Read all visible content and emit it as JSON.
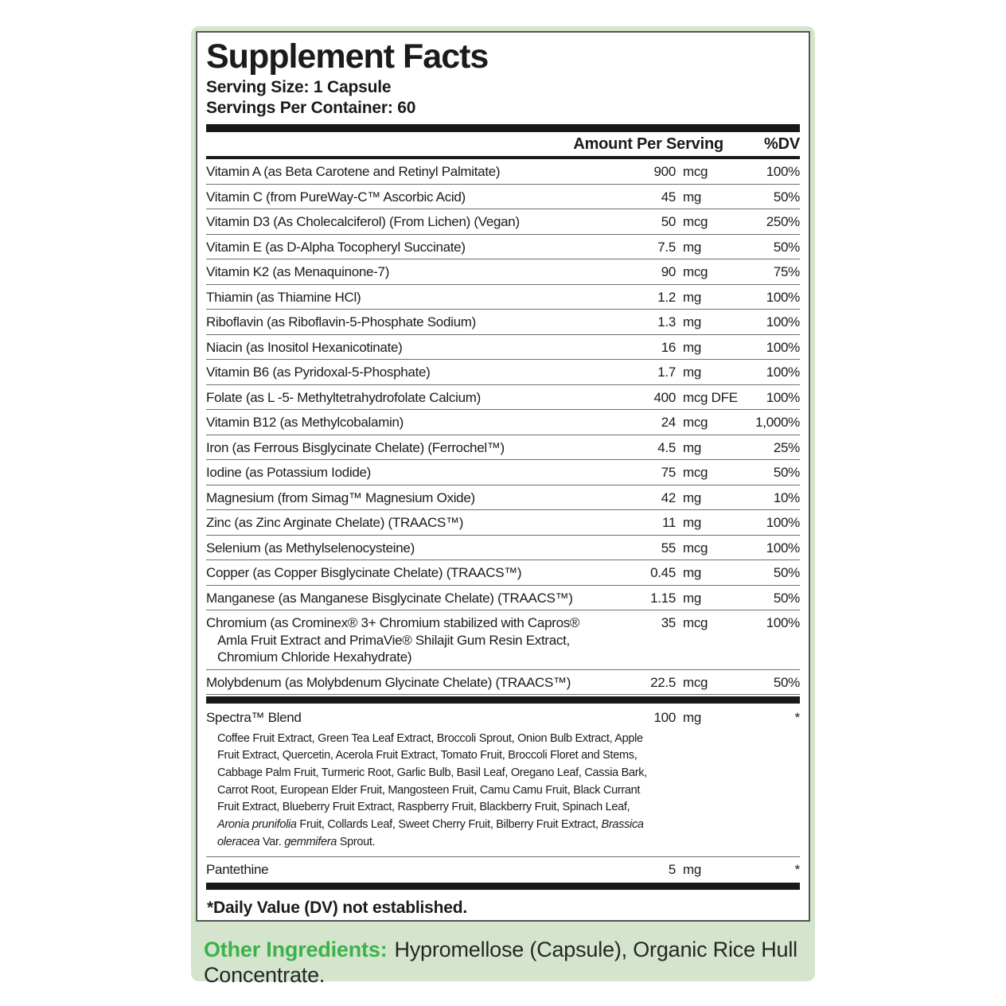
{
  "colors": {
    "label_background": "#d5e5cd",
    "accent_green": "#3bb24a",
    "panel_border_gray": "#555555",
    "rule_black": "#191919",
    "text_black": "#1b1b1b"
  },
  "label": {
    "title": "Supplement Facts",
    "serving_size": "Serving Size: 1 Capsule",
    "servings_per_container": "Servings Per Container: 60",
    "columns": {
      "amount": "Amount Per Serving",
      "dv": "%DV"
    },
    "rows": [
      {
        "name": "Vitamin A (as Beta Carotene and Retinyl Palmitate)",
        "amount": "900",
        "unit": "mcg",
        "dv": "100%"
      },
      {
        "name": "Vitamin C (from PureWay-C™ Ascorbic Acid)",
        "amount": "45",
        "unit": "mg",
        "dv": "50%"
      },
      {
        "name": "Vitamin D3 (As Cholecalciferol) (From Lichen) (Vegan)",
        "amount": "50",
        "unit": "mcg",
        "dv": "250%"
      },
      {
        "name": "Vitamin E (as D-Alpha Tocopheryl Succinate)",
        "amount": "7.5",
        "unit": "mg",
        "dv": "50%"
      },
      {
        "name": "Vitamin K2 (as Menaquinone-7)",
        "amount": "90",
        "unit": "mcg",
        "dv": "75%"
      },
      {
        "name": "Thiamin (as Thiamine HCl)",
        "amount": "1.2",
        "unit": "mg",
        "dv": "100%"
      },
      {
        "name": "Riboflavin (as Riboflavin-5-Phosphate Sodium)",
        "amount": "1.3",
        "unit": "mg",
        "dv": "100%"
      },
      {
        "name": "Niacin (as Inositol Hexanicotinate)",
        "amount": "16",
        "unit": "mg",
        "dv": "100%"
      },
      {
        "name": "Vitamin B6 (as Pyridoxal-5-Phosphate)",
        "amount": "1.7",
        "unit": "mg",
        "dv": "100%"
      },
      {
        "name": "Folate (as L -5- Methyltetrahydrofolate Calcium)",
        "amount": "400",
        "unit": "mcg DFE",
        "dv": "100%"
      },
      {
        "name": "Vitamin B12 (as Methylcobalamin)",
        "amount": "24",
        "unit": "mcg",
        "dv": "1,000%"
      },
      {
        "name": "Iron (as Ferrous Bisglycinate Chelate) (Ferrochel™)",
        "amount": "4.5",
        "unit": "mg",
        "dv": "25%"
      },
      {
        "name": "Iodine (as Potassium Iodide)",
        "amount": "75",
        "unit": "mcg",
        "dv": "50%"
      },
      {
        "name": "Magnesium (from Simag™ Magnesium Oxide)",
        "amount": "42",
        "unit": "mg",
        "dv": "10%"
      },
      {
        "name": "Zinc (as Zinc Arginate Chelate) (TRAACS™)",
        "amount": "11",
        "unit": "mg",
        "dv": "100%"
      },
      {
        "name": "Selenium (as Methylselenocysteine)",
        "amount": "55",
        "unit": "mcg",
        "dv": "100%"
      },
      {
        "name": "Copper (as Copper Bisglycinate Chelate) (TRAACS™)",
        "amount": "0.45",
        "unit": "mg",
        "dv": "50%"
      },
      {
        "name": "Manganese (as Manganese Bisglycinate Chelate) (TRAACS™)",
        "amount": "1.15",
        "unit": "mg",
        "dv": "50%"
      },
      {
        "name": "Chromium (as Crominex® 3+ Chromium stabilized with Capros® Amla Fruit Extract and PrimaVie® Shilajit Gum Resin Extract, Chromium Chloride Hexahydrate)",
        "amount": "35",
        "unit": "mcg",
        "dv": "100%"
      },
      {
        "name": "Molybdenum (as Molybdenum Glycinate Chelate) (TRAACS™)",
        "amount": "22.5",
        "unit": "mcg",
        "dv": "50%"
      }
    ],
    "blend": {
      "name": "Spectra™ Blend",
      "amount": "100",
      "unit": "mg",
      "dv": "*",
      "ingredients": [
        {
          "text": "Coffee Fruit Extract, Green Tea Leaf Extract, Broccoli Sprout, Onion Bulb Extract, Apple Fruit Extract, Quercetin, Acerola Fruit Extract, Tomato Fruit, Broccoli Floret and Stems, Cabbage Palm Fruit, Turmeric Root, Garlic Bulb, Basil Leaf, Oregano Leaf, Cassia Bark, Carrot Root, European Elder Fruit, Mangosteen Fruit, Camu Camu Fruit, Black Currant Fruit Extract, Blueberry Fruit Extract, Raspberry Fruit, Blackberry Fruit, Spinach Leaf, ",
          "italic": false
        },
        {
          "text": "Aronia prunifolia",
          "italic": true
        },
        {
          "text": " Fruit, Collards Leaf, Sweet Cherry Fruit, Bilberry Fruit Extract, ",
          "italic": false
        },
        {
          "text": "Brassica oleracea",
          "italic": true
        },
        {
          "text": " Var. ",
          "italic": false
        },
        {
          "text": "gemmifera",
          "italic": true
        },
        {
          "text": " Sprout.",
          "italic": false
        }
      ]
    },
    "pantethine": {
      "name": "Pantethine",
      "amount": "5",
      "unit": "mg",
      "dv": "*"
    },
    "footnote": "*Daily Value (DV) not established.",
    "other_ingredients": {
      "label": "Other Ingredients:",
      "line1": "Hypromellose (Capsule), Organic Rice Hull",
      "line2": "Concentrate."
    }
  }
}
